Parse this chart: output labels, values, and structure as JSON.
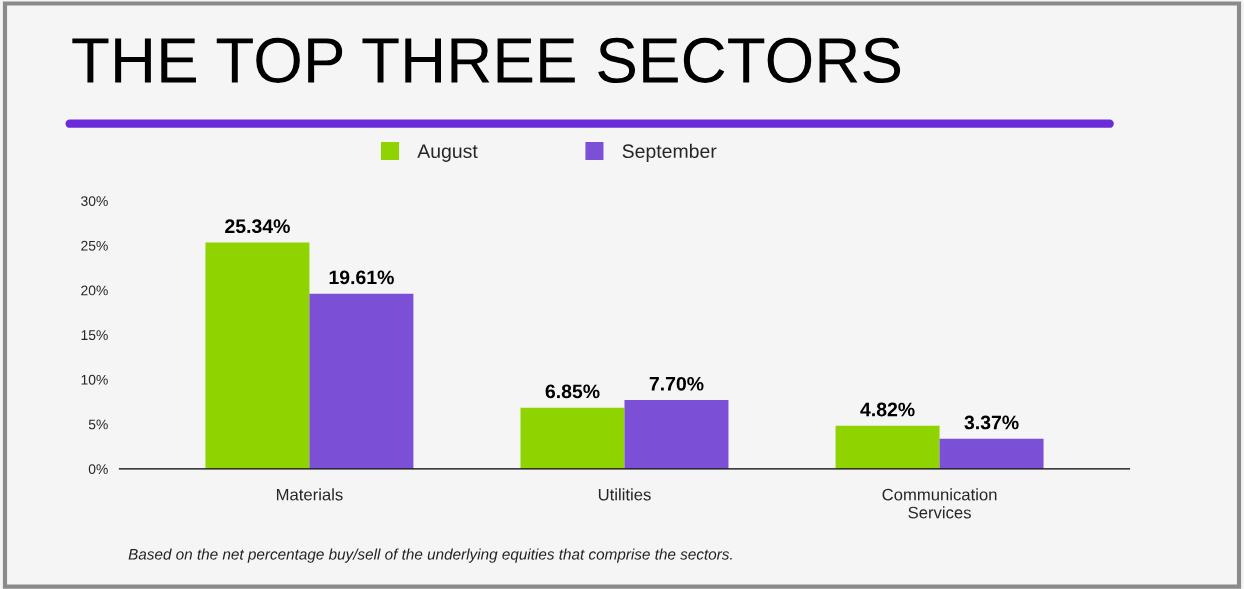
{
  "chart_data": {
    "type": "bar",
    "title": "THE TOP THREE SECTORS",
    "categories": [
      "Materials",
      "Utilities",
      "Communication\nServices"
    ],
    "series": [
      {
        "name": "August",
        "color": "#8fd400",
        "values": [
          25.34,
          6.85,
          4.82
        ],
        "value_labels": [
          "25.34%",
          "6.85%",
          "4.82%"
        ]
      },
      {
        "name": "September",
        "color": "#7b4fd6",
        "values": [
          19.61,
          7.7,
          3.37
        ],
        "value_labels": [
          "19.61%",
          "7.70%",
          "3.37%"
        ]
      }
    ],
    "ylim": [
      0,
      30
    ],
    "yticks": [
      {
        "value": 0,
        "label": "0%"
      },
      {
        "value": 5,
        "label": "5%"
      },
      {
        "value": 10,
        "label": "10%"
      },
      {
        "value": 15,
        "label": "15%"
      },
      {
        "value": 20,
        "label": "20%"
      },
      {
        "value": 25,
        "label": "25%"
      },
      {
        "value": 30,
        "label": "30%"
      }
    ],
    "grid": false,
    "legend": "top",
    "annotations": [
      "Based on the net percentage buy/sell of the underlying equities that comprise the sectors."
    ]
  }
}
